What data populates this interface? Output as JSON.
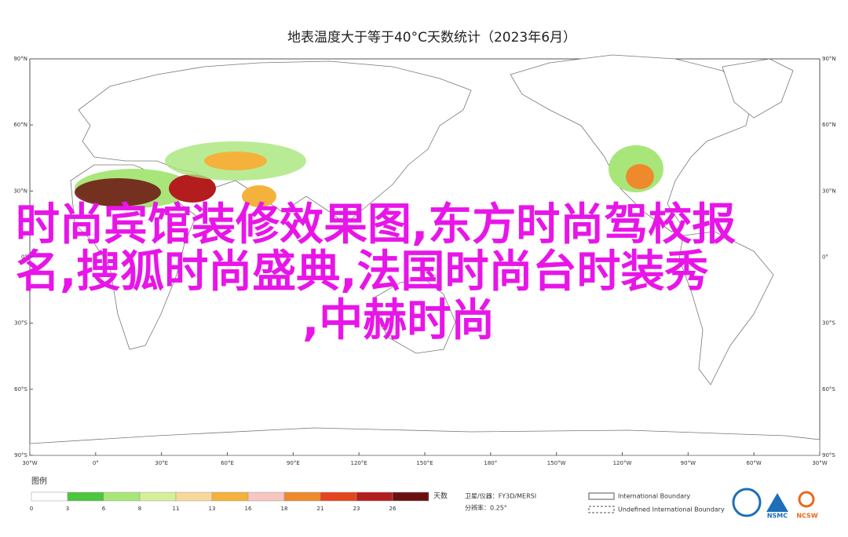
{
  "title": "地表温度大于等于40°C天数统计（2023年6月）",
  "map": {
    "lat_labels": [
      "90°N",
      "60°N",
      "30°N",
      "0°",
      "30°S",
      "60°S",
      "90°S"
    ],
    "lon_labels": [
      "30°W",
      "0°",
      "30°E",
      "60°E",
      "90°E",
      "120°E",
      "150°E",
      "180°",
      "150°W",
      "120°W",
      "90°W",
      "60°W",
      "30°W"
    ]
  },
  "legend": {
    "title": "图例",
    "unit": "天数",
    "labels": [
      "0",
      "3",
      "6",
      "8",
      "11",
      "13",
      "16",
      "18",
      "21",
      "23",
      "26"
    ],
    "colors": [
      "#ffffff",
      "#4cc63c",
      "#a8e67a",
      "#d6ef9a",
      "#f8d89a",
      "#f4b23c",
      "#f6c6c0",
      "#ee8a2c",
      "#e4451c",
      "#b31d1d",
      "#6b1010"
    ]
  },
  "info": {
    "satellite": "卫星/仪器：FY3D/MERSI",
    "resolution": "分辨率：0.25°"
  },
  "boundaries": [
    "International Boundary",
    "Undefined International Boundary"
  ],
  "logos": [
    "NSMC",
    "NCSW"
  ],
  "overlay": [
    "时尚宾馆装修效果图,东方时尚驾校报",
    "名,搜狐时尚盛典,法国时尚台时装秀",
    ",中赫时尚"
  ]
}
